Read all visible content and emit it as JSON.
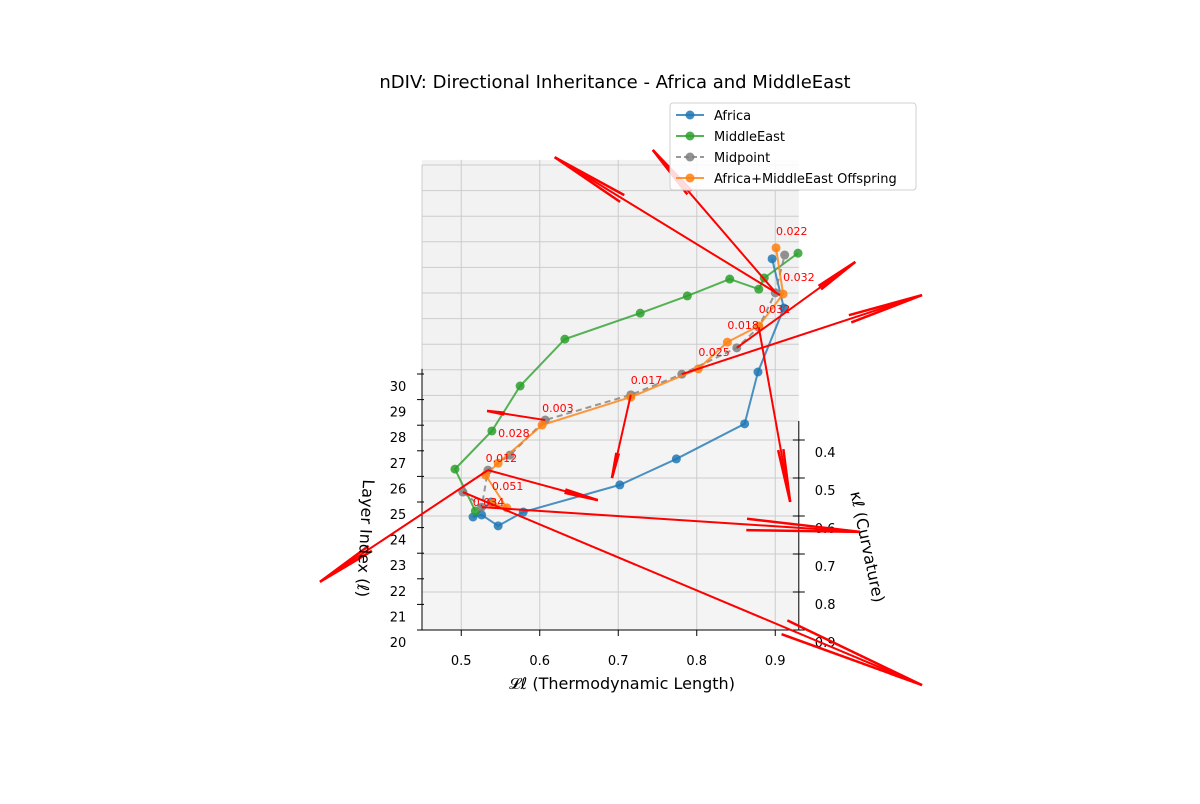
{
  "chart_data": {
    "type": "line3d",
    "title": "nDIV: Directional Inheritance - Africa and MiddleEast",
    "xlabel": "𝓛ℓ (Thermodynamic Length)",
    "ylabel": "κℓ (Curvature)",
    "zlabel": "Layer Index (ℓ)",
    "xlim": [
      0.45,
      0.93
    ],
    "ylim": [
      0.35,
      0.9
    ],
    "zlim": [
      20,
      30.2
    ],
    "xticks": [
      "0.5",
      "0.6",
      "0.7",
      "0.8",
      "0.9"
    ],
    "yticks": [
      "0.4",
      "0.5",
      "0.6",
      "0.7",
      "0.8",
      "0.9"
    ],
    "zticks": [
      "20",
      "21",
      "22",
      "23",
      "24",
      "25",
      "26",
      "27",
      "28",
      "29",
      "30"
    ],
    "grid": true,
    "legend_position": "top-right",
    "layers": [
      20,
      21,
      22,
      23,
      24,
      25,
      26,
      27,
      28,
      29,
      30
    ],
    "series": [
      {
        "name": "Africa",
        "color": "#1f77b4",
        "style": "solid",
        "L": [
          0.538,
          0.515,
          0.526,
          0.547,
          0.579,
          0.702,
          0.774,
          0.861,
          0.878,
          0.911,
          0.896
        ],
        "kappa": [
          0.563,
          0.67,
          0.732,
          0.828,
          0.859,
          0.855,
          0.854,
          0.829,
          0.76,
          0.659,
          0.597
        ]
      },
      {
        "name": "MiddleEast",
        "color": "#2ca02c",
        "style": "solid",
        "L": [
          0.518,
          0.492,
          0.539,
          0.575,
          0.632,
          0.728,
          0.788,
          0.842,
          0.879,
          0.886,
          0.929
        ],
        "kappa": [
          0.587,
          0.544,
          0.511,
          0.46,
          0.404,
          0.403,
          0.425,
          0.448,
          0.542,
          0.58,
          0.582
        ]
      },
      {
        "name": "Midpoint",
        "color": "#7f7f7f",
        "style": "dashed",
        "L": [
          0.502,
          0.526,
          0.534,
          0.562,
          0.607,
          0.716,
          0.781,
          0.851,
          0.879,
          0.9,
          0.912
        ],
        "kappa": [
          0.537,
          0.644,
          0.614,
          0.642,
          0.617,
          0.618,
          0.631,
          0.629,
          0.642,
          0.619,
          0.587
        ]
      },
      {
        "name": "Africa+MiddleEast Offspring",
        "color": "#ff7f0e",
        "style": "solid",
        "L": [
          0.539,
          0.558,
          0.531,
          0.547,
          0.603,
          0.716,
          0.802,
          0.839,
          0.879,
          0.91,
          0.901
        ],
        "kappa": [
          0.566,
          0.646,
          0.627,
          0.663,
          0.63,
          0.624,
          0.617,
          0.614,
          0.639,
          0.622,
          0.568
        ]
      }
    ],
    "annotations": [
      "0.051",
      "0.034",
      "0.012",
      "0.028",
      "0.003",
      "0.017",
      "0.025",
      "0.018",
      "0.032",
      "0.032",
      "0.022"
    ],
    "annotation_color": "#ff0000",
    "arrows": {
      "color": "#ff0000",
      "items": [
        {
          "from": [
            0.906,
            0.625,
            29
          ],
          "to": [
            0.619,
            0.262,
            29
          ]
        },
        {
          "from": [
            0.9,
            0.617,
            29
          ],
          "to": [
            0.744,
            0.243,
            29
          ]
        },
        {
          "from": [
            0.851,
            0.629,
            27
          ],
          "to": [
            1.002,
            0.403,
            27
          ]
        },
        {
          "from": [
            0.781,
            0.631,
            26
          ],
          "to": [
            1.087,
            0.423,
            26
          ]
        },
        {
          "from": [
            0.534,
            0.614,
            22
          ],
          "to": [
            0.32,
            0.908,
            22
          ]
        },
        {
          "from": [
            0.607,
            0.617,
            24
          ],
          "to": [
            0.533,
            0.593,
            24
          ]
        },
        {
          "from": [
            0.716,
            0.618,
            25
          ],
          "to": [
            0.692,
            0.837,
            25
          ]
        },
        {
          "from": [
            0.879,
            0.642,
            28
          ],
          "to": [
            0.919,
            1.102,
            28
          ]
        },
        {
          "from": [
            0.534,
            0.614,
            22
          ],
          "to": [
            0.674,
            0.693,
            22
          ]
        },
        {
          "from": [
            0.526,
            0.644,
            21
          ],
          "to": [
            1.008,
            0.709,
            21
          ]
        },
        {
          "from": [
            0.502,
            0.537,
            20
          ],
          "to": [
            1.087,
            1.045,
            20
          ]
        }
      ]
    }
  }
}
